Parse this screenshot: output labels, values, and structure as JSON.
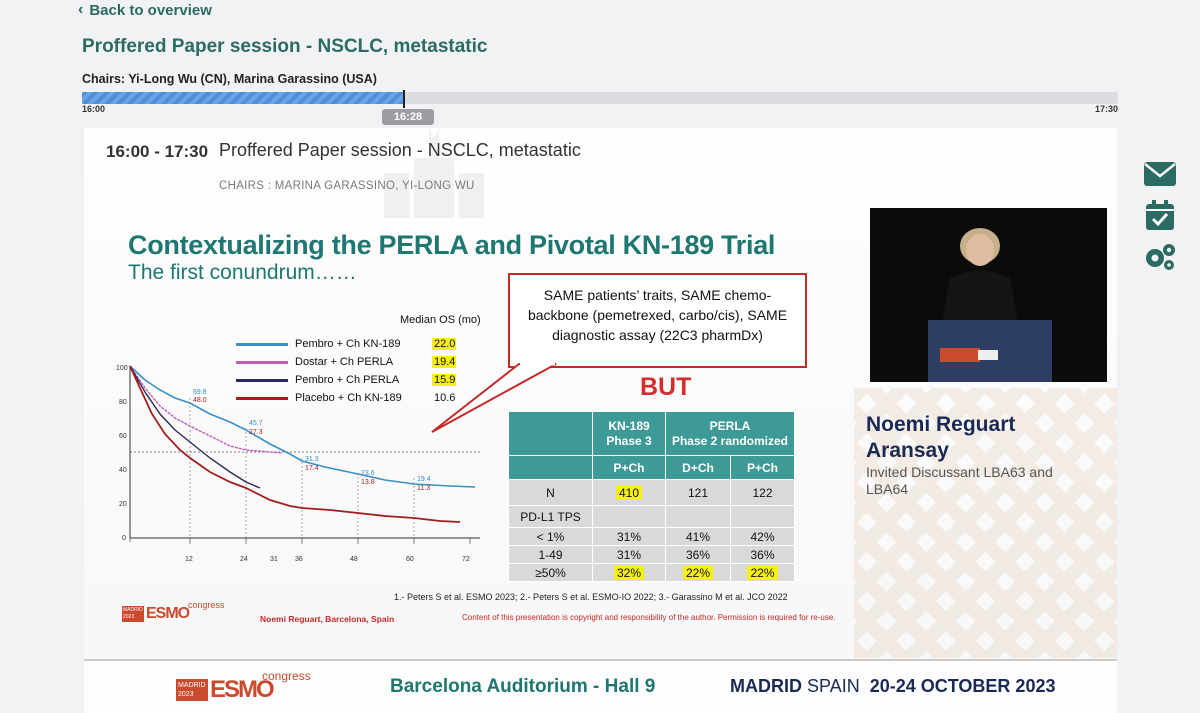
{
  "nav": {
    "back_label": "Back to overview"
  },
  "session": {
    "title": "Proffered Paper session - NSCLC, metastatic",
    "chairs": "Chairs: Yi-Long Wu (CN), Marina Garassino (USA)"
  },
  "timeline": {
    "start": "16:00",
    "end": "17:30",
    "current": "16:28",
    "progress": 0.311
  },
  "video": {
    "time_range": "16:00 - 17:30",
    "title": "Proffered Paper session - NSCLC, metastatic",
    "chairs": "CHAIRS : MARINA GARASSINO, YI-LONG WU",
    "slide": {
      "title": "Contextualizing the PERLA and Pivotal KN-189 Trial",
      "subtitle": "The first conundrum……",
      "callout": "SAME patients’ traits, SAME chemo-backbone (pemetrexed, carbo/cis), SAME diagnostic assay (22C3 pharmDx)",
      "but": "BUT",
      "median_os_label": "Median OS (mo)",
      "legend": [
        {
          "label": "Pembro + Ch KN-189",
          "value": "22.0",
          "color": "#3a8fc7",
          "highlight": true
        },
        {
          "label": "Dostar + Ch PERLA",
          "value": "19.4",
          "color": "#c25bb3",
          "highlight": true
        },
        {
          "label": "Pembro + Ch PERLA",
          "value": "15.9",
          "color": "#2b2b5a",
          "highlight": true
        },
        {
          "label": "Placebo + Ch KN-189",
          "value": "10.6",
          "color": "#a31d1d",
          "highlight": false
        }
      ],
      "km_labels": {
        "a": "69.8",
        "b": "48.0",
        "c": "45.7",
        "d": "27.3",
        "e": "31.3",
        "f": "17.4",
        "g": "23.6",
        "h": "13.8",
        "i": "19.4",
        "j": "11.3"
      },
      "km_y_ticks": [
        "100",
        "80",
        "60",
        "40",
        "20",
        "0"
      ],
      "km_x_ticks": [
        "12",
        "24",
        "31",
        "36",
        "48",
        "60",
        "72"
      ],
      "table": {
        "h_kn": "KN-189",
        "h_kn_sub": "Phase 3",
        "h_perla": "PERLA",
        "h_perla_sub": "Phase 2 randomized",
        "c1": "P+Ch",
        "c2": "D+Ch",
        "c3": "P+Ch",
        "rows": [
          {
            "label": "N",
            "v": [
              "410",
              "121",
              "122"
            ],
            "hl": [
              true,
              false,
              false
            ]
          },
          {
            "label": "PD-L1 TPS",
            "v": [
              "",
              "",
              ""
            ],
            "hl": [
              false,
              false,
              false
            ]
          },
          {
            "label": "< 1%",
            "v": [
              "31%",
              "41%",
              "42%"
            ],
            "hl": [
              false,
              false,
              false
            ]
          },
          {
            "label": "1-49",
            "v": [
              "31%",
              "36%",
              "36%"
            ],
            "hl": [
              false,
              false,
              false
            ]
          },
          {
            "label": "≥50%",
            "v": [
              "32%",
              "22%",
              "22%"
            ],
            "hl": [
              true,
              true,
              true
            ]
          }
        ]
      },
      "refs": "1.- Peters S et al. ESMO 2023; 2.- Peters S et al. ESMO-IO 2022; 3.- Garassino M et al. JCO 2022",
      "copyright": "Content of this presentation is copyright and responsibility of the author. Permission is required for re-use.",
      "presenter_footer": "Noemi Reguart, Barcelona, Spain",
      "logo": {
        "city": "MADRID",
        "year": "2023",
        "brand": "ESMO",
        "suffix": "congress"
      }
    },
    "speaker": {
      "name": "Noemi Reguart Aransay",
      "role": "Invited Discussant LBA63 and LBA64"
    },
    "footer": {
      "venue": "Barcelona Auditorium - Hall 9",
      "city": "MADRID",
      "country": "SPAIN",
      "dates": "20-24 OCTOBER 2023",
      "logo": {
        "city": "MADRID",
        "year": "2023",
        "brand": "ESMO",
        "suffix": "congress"
      }
    }
  },
  "side_icons": [
    "envelope-icon",
    "calendar-check-icon",
    "gears-icon"
  ],
  "colors": {
    "accent": "#2c6b64",
    "table_head": "#3e9a96",
    "highlight": "#f6f00e",
    "red": "#d32f2f"
  }
}
